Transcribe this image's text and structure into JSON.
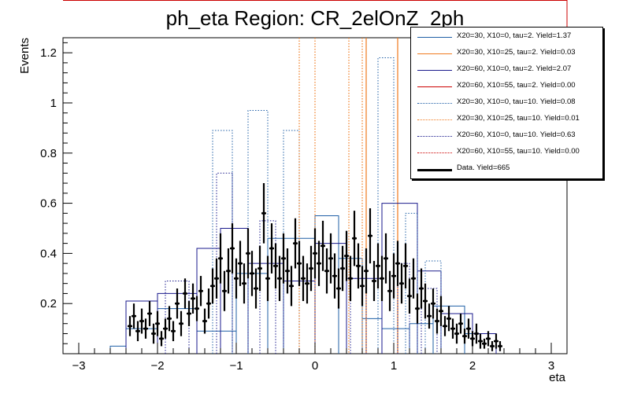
{
  "chart_data": {
    "type": "histogram",
    "title": "ph_eta Region: CR_2elOnZ_2ph",
    "xlabel": "eta",
    "ylabel": "Events",
    "xlim": [
      -3.2,
      3.2
    ],
    "ylim": [
      0,
      1.26
    ],
    "x_ticks": [
      -3,
      -2,
      -1,
      0,
      1,
      2,
      3
    ],
    "y_ticks": [
      0.2,
      0.4,
      0.6,
      0.8,
      1,
      1.2
    ],
    "legend_position": "top-right",
    "series": [
      {
        "name": "X20=30, X10=0, tau=2. Yield=1.37",
        "color": "#1f5fa6",
        "style": "solid",
        "kind": "step",
        "bins": [
          [
            -2.6,
            -2.4,
            0.03
          ],
          [
            -2.4,
            -2.0,
            0.1
          ],
          [
            -2.0,
            -1.5,
            0.18
          ],
          [
            -1.5,
            -1.0,
            0.09
          ],
          [
            -1.0,
            -0.6,
            0.32
          ],
          [
            -0.6,
            0.0,
            0.46
          ],
          [
            0.0,
            0.3,
            0.55
          ],
          [
            0.3,
            0.6,
            0.38
          ],
          [
            0.6,
            0.85,
            0.14
          ],
          [
            0.85,
            1.2,
            0.1
          ],
          [
            1.2,
            1.5,
            0.12
          ],
          [
            1.5,
            1.9,
            0.19
          ],
          [
            1.9,
            2.3,
            0.08
          ]
        ]
      },
      {
        "name": "X20=30, X10=25, tau=2. Yield=0.03",
        "color": "#f07a1e",
        "style": "solid",
        "kind": "spikes",
        "lines": [
          0.65,
          1.05
        ]
      },
      {
        "name": "X20=60, X10=0, tau=2. Yield=2.07",
        "color": "#1a1a8c",
        "style": "solid",
        "kind": "step",
        "bins": [
          [
            -2.4,
            -2.0,
            0.21
          ],
          [
            -2.0,
            -1.5,
            0.24
          ],
          [
            -1.5,
            -1.2,
            0.42
          ],
          [
            -1.2,
            -0.85,
            0.5
          ],
          [
            -0.85,
            -0.4,
            0.36
          ],
          [
            -0.4,
            0.0,
            0.29
          ],
          [
            0.0,
            0.4,
            0.44
          ],
          [
            0.4,
            0.85,
            0.3
          ],
          [
            0.85,
            1.3,
            0.6
          ],
          [
            1.3,
            1.6,
            0.33
          ],
          [
            1.6,
            2.0,
            0.16
          ],
          [
            2.0,
            2.3,
            0.08
          ]
        ]
      },
      {
        "name": "X20=60, X10=55, tau=2. Yield=0.00",
        "color": "#cc0000",
        "style": "solid",
        "kind": "none"
      },
      {
        "name": "X20=30, X10=0, tau=10. Yield=0.08",
        "color": "#1f5fa6",
        "style": "dotted",
        "kind": "step",
        "bins": [
          [
            -1.3,
            -1.05,
            0.89
          ],
          [
            -0.85,
            -0.6,
            0.97
          ],
          [
            -0.4,
            -0.2,
            0.89
          ],
          [
            0.8,
            1.0,
            1.18
          ],
          [
            1.15,
            1.3,
            0.56
          ],
          [
            1.4,
            1.6,
            0.37
          ]
        ]
      },
      {
        "name": "X20=30, X10=25, tau=10. Yield=0.01",
        "color": "#f07a1e",
        "style": "dotted",
        "kind": "spikes",
        "lines": [
          -0.2,
          0.0,
          0.43,
          0.6
        ]
      },
      {
        "name": "X20=60, X10=0, tau=10. Yield=0.63",
        "color": "#1a1a8c",
        "style": "dotted",
        "kind": "step",
        "bins": [
          [
            -1.9,
            -1.6,
            0.29
          ],
          [
            -1.25,
            -1.05,
            0.72
          ],
          [
            -0.7,
            -0.5,
            0.53
          ],
          [
            0.45,
            0.65,
            0.3
          ],
          [
            1.05,
            1.2,
            0.36
          ],
          [
            1.35,
            1.55,
            0.26
          ]
        ]
      },
      {
        "name": "X20=60, X10=55, tau=10. Yield=0.00",
        "color": "#cc0000",
        "style": "dotted",
        "kind": "none"
      },
      {
        "name": "Data. Yield=665",
        "color": "#000000",
        "style": "thick",
        "kind": "points",
        "points": [
          [
            -2.35,
            0.11,
            0.04
          ],
          [
            -2.3,
            0.15,
            0.05
          ],
          [
            -2.25,
            0.09,
            0.04
          ],
          [
            -2.2,
            0.13,
            0.05
          ],
          [
            -2.15,
            0.1,
            0.04
          ],
          [
            -2.1,
            0.16,
            0.05
          ],
          [
            -2.05,
            0.08,
            0.04
          ],
          [
            -2.0,
            0.12,
            0.05
          ],
          [
            -1.95,
            0.06,
            0.03
          ],
          [
            -1.9,
            0.1,
            0.04
          ],
          [
            -1.85,
            0.14,
            0.05
          ],
          [
            -1.8,
            0.09,
            0.04
          ],
          [
            -1.75,
            0.2,
            0.06
          ],
          [
            -1.7,
            0.12,
            0.05
          ],
          [
            -1.65,
            0.24,
            0.06
          ],
          [
            -1.6,
            0.16,
            0.05
          ],
          [
            -1.55,
            0.22,
            0.06
          ],
          [
            -1.5,
            0.18,
            0.05
          ],
          [
            -1.45,
            0.25,
            0.06
          ],
          [
            -1.4,
            0.13,
            0.05
          ],
          [
            -1.35,
            0.2,
            0.06
          ],
          [
            -1.3,
            0.27,
            0.07
          ],
          [
            -1.25,
            0.3,
            0.08
          ],
          [
            -1.2,
            0.38,
            0.1
          ],
          [
            -1.15,
            0.25,
            0.08
          ],
          [
            -1.1,
            0.33,
            0.09
          ],
          [
            -1.05,
            0.42,
            0.1
          ],
          [
            -1.0,
            0.3,
            0.08
          ],
          [
            -0.95,
            0.36,
            0.09
          ],
          [
            -0.9,
            0.28,
            0.08
          ],
          [
            -0.85,
            0.4,
            0.1
          ],
          [
            -0.8,
            0.32,
            0.09
          ],
          [
            -0.75,
            0.26,
            0.08
          ],
          [
            -0.7,
            0.34,
            0.09
          ],
          [
            -0.65,
            0.56,
            0.12
          ],
          [
            -0.6,
            0.3,
            0.09
          ],
          [
            -0.55,
            0.42,
            0.1
          ],
          [
            -0.5,
            0.35,
            0.09
          ],
          [
            -0.45,
            0.3,
            0.09
          ],
          [
            -0.4,
            0.38,
            0.1
          ],
          [
            -0.35,
            0.33,
            0.09
          ],
          [
            -0.3,
            0.27,
            0.08
          ],
          [
            -0.25,
            0.44,
            0.1
          ],
          [
            -0.2,
            0.36,
            0.09
          ],
          [
            -0.15,
            0.3,
            0.09
          ],
          [
            -0.1,
            0.28,
            0.08
          ],
          [
            -0.05,
            0.34,
            0.09
          ],
          [
            0.0,
            0.4,
            0.1
          ],
          [
            0.05,
            0.36,
            0.09
          ],
          [
            0.1,
            0.43,
            0.1
          ],
          [
            0.15,
            0.33,
            0.09
          ],
          [
            0.2,
            0.38,
            0.1
          ],
          [
            0.25,
            0.31,
            0.09
          ],
          [
            0.3,
            0.26,
            0.08
          ],
          [
            0.35,
            0.34,
            0.09
          ],
          [
            0.4,
            0.39,
            0.1
          ],
          [
            0.45,
            0.3,
            0.09
          ],
          [
            0.5,
            0.46,
            0.11
          ],
          [
            0.55,
            0.35,
            0.09
          ],
          [
            0.6,
            0.27,
            0.08
          ],
          [
            0.65,
            0.33,
            0.09
          ],
          [
            0.7,
            0.47,
            0.11
          ],
          [
            0.75,
            0.29,
            0.08
          ],
          [
            0.8,
            0.35,
            0.09
          ],
          [
            0.85,
            0.3,
            0.09
          ],
          [
            0.9,
            0.38,
            0.1
          ],
          [
            0.95,
            0.25,
            0.08
          ],
          [
            1.0,
            0.31,
            0.09
          ],
          [
            1.05,
            0.36,
            0.09
          ],
          [
            1.1,
            0.28,
            0.08
          ],
          [
            1.15,
            0.35,
            0.09
          ],
          [
            1.2,
            0.23,
            0.07
          ],
          [
            1.25,
            0.3,
            0.08
          ],
          [
            1.3,
            0.18,
            0.06
          ],
          [
            1.35,
            0.26,
            0.08
          ],
          [
            1.4,
            0.21,
            0.07
          ],
          [
            1.45,
            0.15,
            0.05
          ],
          [
            1.5,
            0.2,
            0.06
          ],
          [
            1.55,
            0.13,
            0.05
          ],
          [
            1.6,
            0.17,
            0.06
          ],
          [
            1.65,
            0.11,
            0.04
          ],
          [
            1.7,
            0.14,
            0.05
          ],
          [
            1.75,
            0.1,
            0.04
          ],
          [
            1.8,
            0.08,
            0.04
          ],
          [
            1.85,
            0.12,
            0.04
          ],
          [
            1.9,
            0.07,
            0.03
          ],
          [
            1.95,
            0.1,
            0.04
          ],
          [
            2.0,
            0.06,
            0.03
          ],
          [
            2.05,
            0.08,
            0.04
          ],
          [
            2.1,
            0.05,
            0.03
          ],
          [
            2.15,
            0.04,
            0.02
          ],
          [
            2.2,
            0.06,
            0.03
          ],
          [
            2.25,
            0.03,
            0.02
          ],
          [
            2.3,
            0.05,
            0.03
          ],
          [
            2.35,
            0.03,
            0.02
          ]
        ]
      }
    ]
  }
}
